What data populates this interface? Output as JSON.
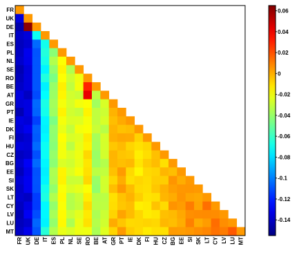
{
  "chart_data": {
    "type": "heatmap",
    "title": "",
    "xlabel": "",
    "ylabel": "",
    "layout": "lower-triangular",
    "colormap": "jet",
    "diagonal_color": "#ff9900",
    "countries": [
      "FR",
      "UK",
      "DE",
      "IT",
      "ES",
      "PL",
      "NL",
      "SE",
      "RO",
      "BE",
      "AT",
      "GR",
      "PT",
      "IE",
      "DK",
      "FI",
      "HU",
      "CZ",
      "BG",
      "EE",
      "SI",
      "SK",
      "LT",
      "CY",
      "LV",
      "LU",
      "MT"
    ],
    "colorbar": {
      "range": [
        -0.155,
        0.065
      ],
      "ticks": [
        0.06,
        0.04,
        0.02,
        0,
        -0.02,
        -0.04,
        -0.06,
        -0.08,
        -0.1,
        -0.12,
        -0.14
      ],
      "tick_labels": [
        "0.06",
        "0.04",
        "0.02",
        "0",
        "-0.02",
        "-0.04",
        "-0.06",
        "-0.08",
        "-0.1",
        "-0.12",
        "-0.14"
      ]
    },
    "column_base_values": [
      -0.14,
      -0.135,
      -0.11,
      -0.07,
      -0.04,
      -0.02,
      -0.03,
      -0.025,
      -0.015,
      -0.035,
      -0.03,
      -0.005,
      0.0,
      -0.005,
      -0.01,
      -0.012,
      -0.008,
      -0.005,
      0.0,
      0.0,
      0.005,
      0.005,
      0.008,
      0.01,
      0.012,
      0.015
    ],
    "notable_cells": [
      {
        "row": "DE",
        "col": "UK",
        "value": 0.062
      },
      {
        "row": "BE",
        "col": "RO",
        "value": 0.03
      },
      {
        "row": "AT",
        "col": "RO",
        "value": 0.042
      },
      {
        "row": "IT",
        "col": "DE",
        "value": -0.07
      }
    ]
  }
}
